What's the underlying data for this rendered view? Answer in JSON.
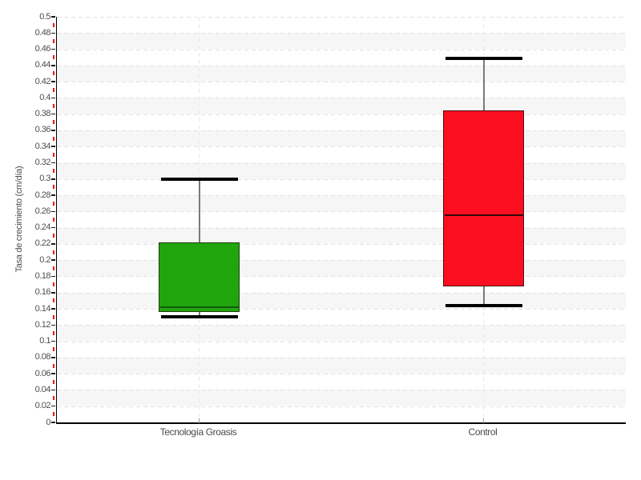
{
  "page": {
    "background": "#ffffff"
  },
  "chart_data": {
    "type": "boxplot",
    "title": "",
    "xlabel": "",
    "ylabel": "Tasa de crecimiento (cm/día)",
    "ylim": [
      0,
      0.5
    ],
    "y_major_step": 0.02,
    "y_minor_step": 0.01,
    "y_tick_labels": [
      "0.5",
      "0.48",
      "0.46",
      "0.44",
      "0.42",
      "0.4",
      "0.38",
      "0.36",
      "0.34",
      "0.32",
      "0.3",
      "0.28",
      "0.26",
      "0.24",
      "0.22",
      "0.2",
      "0.18",
      "0.16",
      "0.14",
      "0.12",
      "0.1",
      "0.08",
      "0.06",
      "0.04",
      "0.02",
      "0"
    ],
    "categories": [
      "Tecnología Groasis",
      "Control"
    ],
    "category_positions_pct": [
      25,
      75
    ],
    "series": [
      {
        "name": "Tecnología Groasis",
        "fill": "#21a50c",
        "border": "#1e3d0c",
        "median_color": "#0e5c0e",
        "min": 0.13,
        "q1": 0.136,
        "median": 0.142,
        "q3": 0.222,
        "max": 0.3
      },
      {
        "name": "Control",
        "fill": "#fb0e1f",
        "border": "#4a1212",
        "median_color": "#330808",
        "min": 0.144,
        "q1": 0.168,
        "median": 0.255,
        "q3": 0.385,
        "max": 0.449
      }
    ],
    "style": {
      "band_color": "#f6f6f6",
      "grid_color": "#e2e2e2",
      "axis_color": "#000000",
      "major_tick_color": "#1a1a1a",
      "minor_tick_color": "#ff0000",
      "tick_label_color": "#4d4d4d",
      "whisker_stem_color": "#7a7a7a",
      "whisker_cap_color": "#000000",
      "legend": "none",
      "grid_horizontal": "dashed",
      "grid_vertical": "dashed-at-categories"
    }
  }
}
